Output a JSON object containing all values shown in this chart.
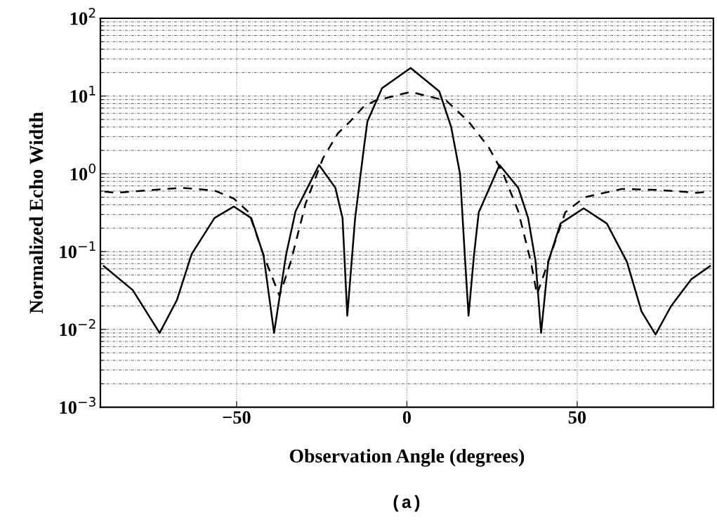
{
  "chart_data": {
    "type": "line",
    "xlabel": "Observation Angle (degrees)",
    "ylabel": "Normalized Echo Width",
    "annotations": [
      "(a)"
    ],
    "log": "y",
    "grid": true,
    "marker": "none",
    "xlim": [
      -90,
      90
    ],
    "xticks": [
      {
        "value": -50,
        "label": "−50"
      },
      0,
      50
    ],
    "ylim": [
      0.001,
      100
    ],
    "yticks": [
      {
        "value": 0.001,
        "label": "10$^{−3}$"
      },
      {
        "value": 0.01,
        "label": "10$^{−2}$"
      },
      {
        "value": 0.1,
        "label": "10$^{−1}$"
      },
      {
        "value": 1,
        "label": "10$^{0}$"
      },
      {
        "value": 10,
        "label": "10$^{1}$"
      },
      {
        "value": 100,
        "label": "10$^{2}$"
      }
    ],
    "series": [
      {
        "color": "#000000",
        "line_style": "solid",
        "x": [
          -89,
          -80.5,
          -72.6,
          -67.5,
          -63.2,
          -56.5,
          -50.8,
          -45.7,
          -42.1,
          -39,
          -35.5,
          -32.7,
          -25.8,
          -21,
          -18.9,
          -17.5,
          -15.2,
          -12.6,
          -11.6,
          -7.3,
          1.1,
          9.5,
          13,
          15.6,
          17,
          18.1,
          19.7,
          21.1,
          27.2,
          32.7,
          35.6,
          37.8,
          39.4,
          41.5,
          45.1,
          51.9,
          58.7,
          64.6,
          68.9,
          73,
          77.6,
          83.5,
          89
        ],
        "values": [
          0.065,
          0.032,
          0.009,
          0.024,
          0.093,
          0.27,
          0.38,
          0.27,
          0.09,
          0.009,
          0.09,
          0.33,
          1.3,
          0.66,
          0.27,
          0.015,
          0.27,
          2.2,
          4.7,
          12.6,
          23,
          11.5,
          4.0,
          1.0,
          0.09,
          0.015,
          0.09,
          0.32,
          1.3,
          0.66,
          0.27,
          0.074,
          0.009,
          0.074,
          0.23,
          0.36,
          0.23,
          0.074,
          0.017,
          0.0086,
          0.02,
          0.044,
          0.065
        ]
      },
      {
        "color": "#000000",
        "line_style": "dashed",
        "x": [
          -88.8,
          -85.6,
          -74.8,
          -66,
          -56.5,
          -50.8,
          -46.4,
          -42.1,
          -37.4,
          -34.1,
          -29.7,
          -24.6,
          -20.3,
          -16.7,
          -12.6,
          -9.4,
          1.1,
          11.6,
          18.1,
          24,
          28.3,
          32.7,
          36.4,
          38.2,
          41.5,
          46.5,
          52.2,
          63.2,
          74,
          85,
          89
        ],
        "values": [
          0.59,
          0.57,
          0.62,
          0.66,
          0.61,
          0.48,
          0.32,
          0.09,
          0.027,
          0.074,
          0.42,
          1.6,
          3.3,
          4.7,
          7.4,
          8.7,
          11.3,
          8.7,
          4.7,
          2.2,
          1.0,
          0.33,
          0.074,
          0.028,
          0.074,
          0.32,
          0.5,
          0.64,
          0.62,
          0.57,
          0.59
        ]
      }
    ]
  }
}
